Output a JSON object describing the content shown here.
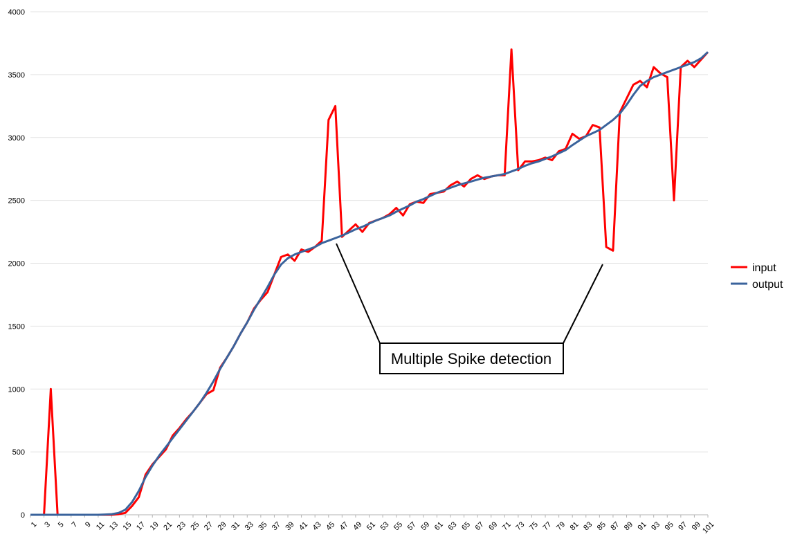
{
  "chart_data": {
    "type": "line",
    "x": [
      1,
      2,
      3,
      4,
      5,
      6,
      7,
      8,
      9,
      10,
      11,
      12,
      13,
      14,
      15,
      16,
      17,
      18,
      19,
      20,
      21,
      22,
      23,
      24,
      25,
      26,
      27,
      28,
      29,
      30,
      31,
      32,
      33,
      34,
      35,
      36,
      37,
      38,
      39,
      40,
      41,
      42,
      43,
      44,
      45,
      46,
      47,
      48,
      49,
      50,
      51,
      52,
      53,
      54,
      55,
      56,
      57,
      58,
      59,
      60,
      61,
      62,
      63,
      64,
      65,
      66,
      67,
      68,
      69,
      70,
      71,
      72,
      73,
      74,
      75,
      76,
      77,
      78,
      79,
      80,
      81,
      82,
      83,
      84,
      85,
      86,
      87,
      88,
      89,
      90,
      91,
      92,
      93,
      94,
      95,
      96,
      97,
      98,
      99,
      100,
      101
    ],
    "x_tick_labels": [
      "1",
      "3",
      "5",
      "7",
      "9",
      "11",
      "13",
      "15",
      "17",
      "19",
      "21",
      "23",
      "25",
      "27",
      "29",
      "31",
      "33",
      "35",
      "37",
      "39",
      "41",
      "43",
      "45",
      "47",
      "49",
      "51",
      "53",
      "55",
      "57",
      "59",
      "61",
      "63",
      "65",
      "67",
      "69",
      "71",
      "73",
      "75",
      "77",
      "79",
      "81",
      "83",
      "85",
      "87",
      "89",
      "91",
      "93",
      "95",
      "97",
      "99",
      "101"
    ],
    "y_ticks": [
      "0",
      "500",
      "1000",
      "1500",
      "2000",
      "2500",
      "3000",
      "3500",
      "4000"
    ],
    "ylim": [
      0,
      4000
    ],
    "grid": "horizontal",
    "legend_position": "right",
    "series": [
      {
        "name": "input",
        "color": "#ff0000",
        "values": [
          0,
          0,
          0,
          1000,
          0,
          0,
          0,
          0,
          0,
          0,
          0,
          0,
          0,
          5,
          15,
          70,
          140,
          320,
          400,
          460,
          520,
          630,
          690,
          760,
          820,
          890,
          960,
          990,
          1170,
          1250,
          1340,
          1440,
          1530,
          1640,
          1710,
          1770,
          1910,
          2050,
          2070,
          2020,
          2110,
          2090,
          2130,
          2180,
          3140,
          3250,
          2210,
          2260,
          2310,
          2250,
          2320,
          2340,
          2360,
          2390,
          2440,
          2380,
          2470,
          2490,
          2480,
          2550,
          2560,
          2570,
          2620,
          2650,
          2610,
          2670,
          2700,
          2670,
          2690,
          2700,
          2700,
          3700,
          2740,
          2810,
          2810,
          2820,
          2840,
          2820,
          2890,
          2910,
          3030,
          2990,
          3010,
          3100,
          3080,
          2130,
          2100,
          3200,
          3310,
          3420,
          3450,
          3400,
          3560,
          3510,
          3480,
          2500,
          3560,
          3610,
          3560,
          3620,
          3680
        ]
      },
      {
        "name": "output",
        "color": "#3a639c",
        "values": [
          0,
          0,
          0,
          0,
          0,
          0,
          0,
          0,
          0,
          0,
          0,
          2,
          5,
          15,
          40,
          100,
          190,
          300,
          390,
          470,
          540,
          610,
          680,
          750,
          820,
          890,
          970,
          1060,
          1160,
          1250,
          1340,
          1440,
          1530,
          1630,
          1720,
          1810,
          1910,
          1990,
          2040,
          2070,
          2090,
          2110,
          2130,
          2160,
          2180,
          2200,
          2220,
          2245,
          2270,
          2290,
          2315,
          2340,
          2360,
          2380,
          2410,
          2435,
          2460,
          2490,
          2510,
          2535,
          2560,
          2580,
          2600,
          2620,
          2635,
          2650,
          2665,
          2680,
          2690,
          2700,
          2710,
          2730,
          2750,
          2775,
          2795,
          2810,
          2830,
          2850,
          2875,
          2900,
          2940,
          2975,
          3010,
          3035,
          3060,
          3100,
          3140,
          3190,
          3260,
          3340,
          3410,
          3450,
          3480,
          3500,
          3520,
          3540,
          3560,
          3580,
          3600,
          3630,
          3680
        ]
      }
    ],
    "annotation": "Multiple Spike detection"
  }
}
